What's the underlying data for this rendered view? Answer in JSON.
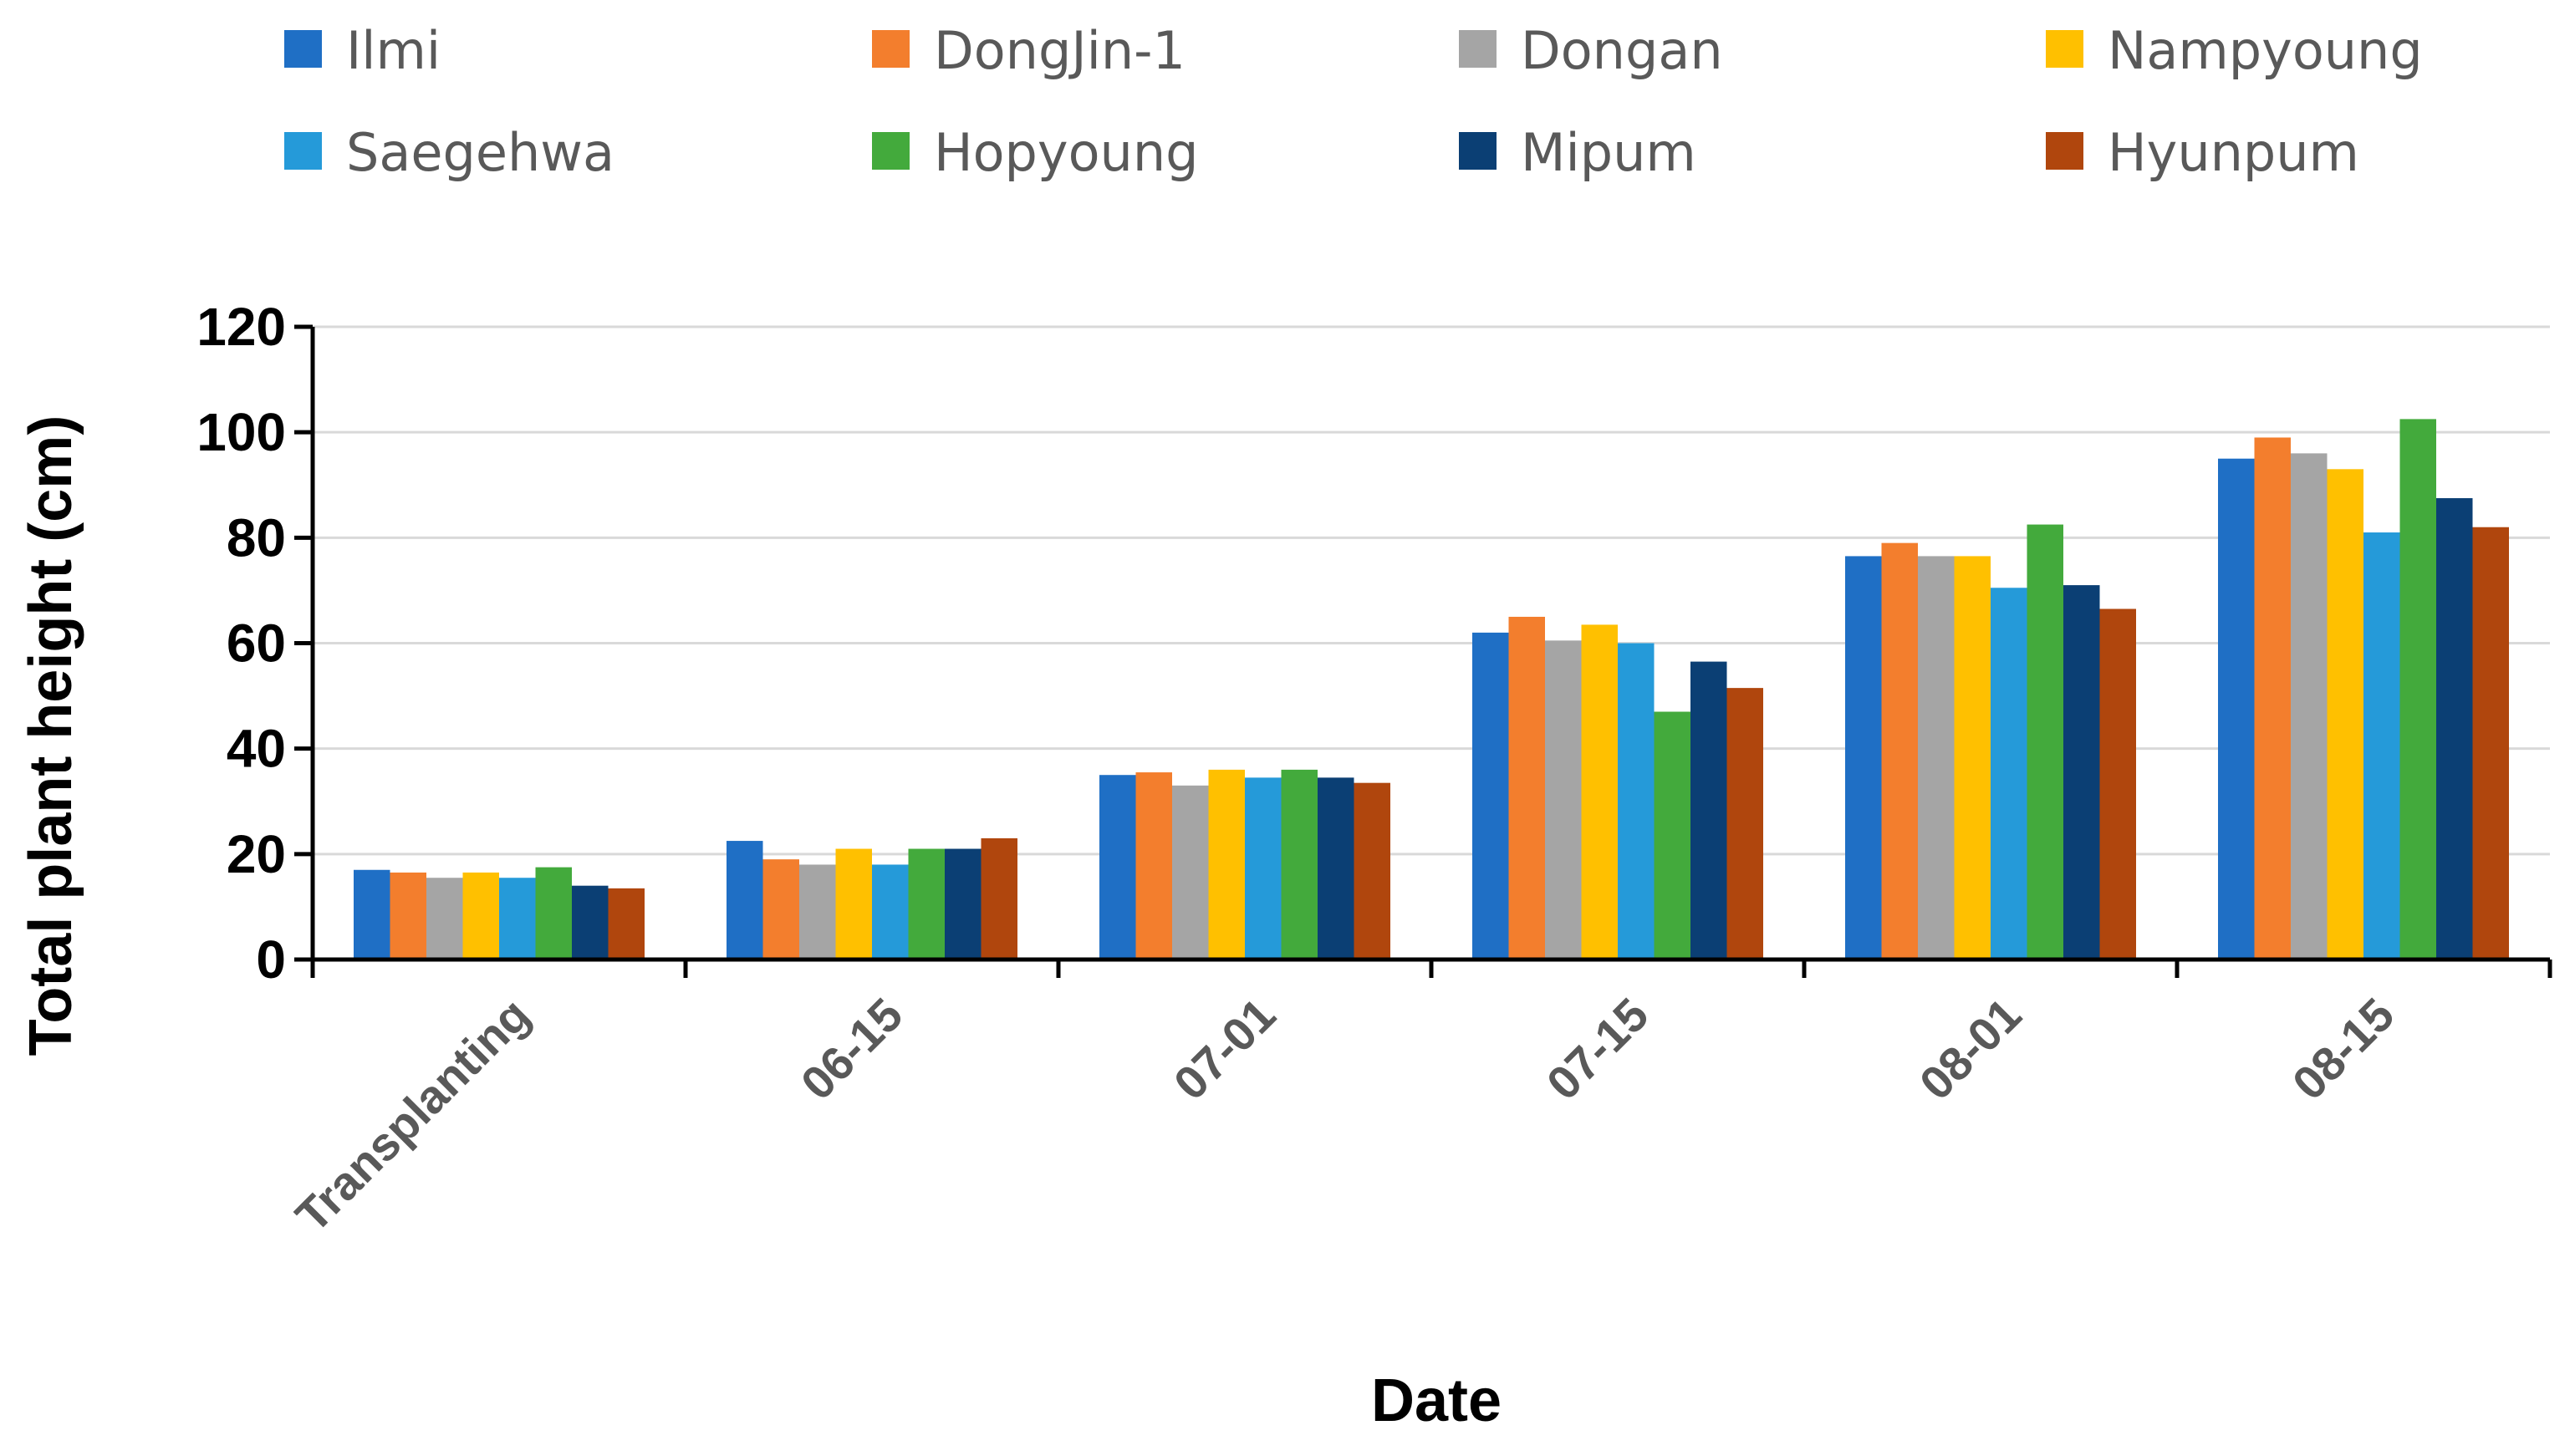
{
  "chart_data": {
    "type": "bar",
    "title": "",
    "xlabel": "Date",
    "ylabel": "Total plant height (cm)",
    "ylim": [
      0,
      120
    ],
    "yticks": [
      0,
      20,
      40,
      60,
      80,
      100,
      120
    ],
    "ytick_labels": [
      "0",
      "20",
      "40",
      "60",
      "80",
      "100",
      "120"
    ],
    "grid": true,
    "legend_position": "top",
    "categories": [
      "Transplanting",
      "06-15",
      "07-01",
      "07-15",
      "08-01",
      "08-15"
    ],
    "series": [
      {
        "name": "Ilmi",
        "color": "#1f6fc5",
        "values": [
          17,
          22.5,
          35,
          62,
          76.5,
          95
        ]
      },
      {
        "name": "DongJin-1",
        "color": "#f37e2d",
        "values": [
          16.5,
          19,
          35.5,
          65,
          79,
          99
        ]
      },
      {
        "name": "Dongan",
        "color": "#a5a5a5",
        "values": [
          15.5,
          18,
          33,
          60.5,
          76.5,
          96
        ]
      },
      {
        "name": "Nampyoung",
        "color": "#ffc000",
        "values": [
          16.5,
          21,
          36,
          63.5,
          76.5,
          93
        ]
      },
      {
        "name": "Saegehwa",
        "color": "#259ad9",
        "values": [
          15.5,
          18,
          34.5,
          60,
          70.5,
          81
        ]
      },
      {
        "name": "Hopyoung",
        "color": "#43aa3c",
        "values": [
          17.5,
          21,
          36,
          47,
          82.5,
          102.5
        ]
      },
      {
        "name": "Mipum",
        "color": "#0b3f74",
        "values": [
          14,
          21,
          34.5,
          56.5,
          71,
          87.5
        ]
      },
      {
        "name": "Hyunpum",
        "color": "#b0460d",
        "values": [
          13.5,
          23,
          33.5,
          51.5,
          66.5,
          82
        ]
      }
    ]
  }
}
